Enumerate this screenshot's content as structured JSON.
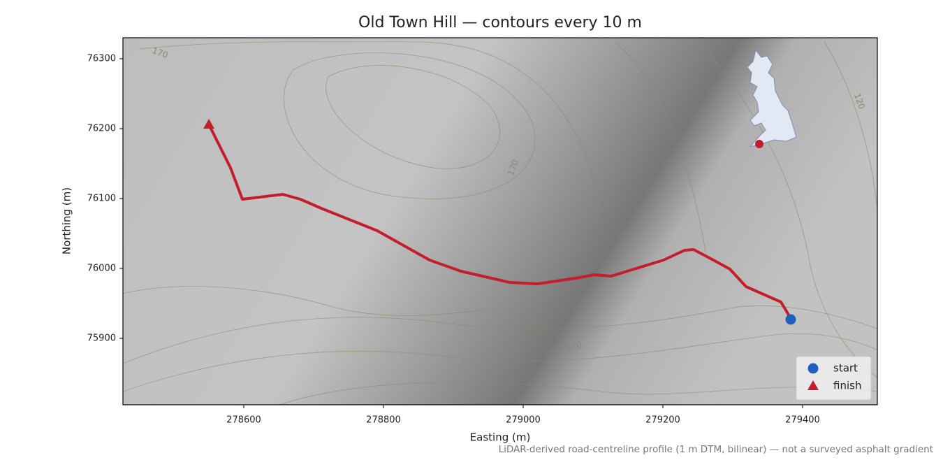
{
  "chart_data": {
    "type": "line",
    "title": "Old Town Hill — contours every 10 m",
    "xlabel": "Easting (m)",
    "ylabel": "Northing (m)",
    "note": "LiDAR-derived road-centreline profile (1 m DTM, bilinear) — not a surveyed asphalt gradient",
    "contour_labels": [
      "170",
      "170",
      "120",
      "120"
    ],
    "xlim": [
      278427,
      279507
    ],
    "ylim": [
      75805,
      76330
    ],
    "xticks": [
      278600,
      278800,
      279000,
      279200,
      279400
    ],
    "yticks": [
      75900,
      76000,
      76100,
      76200,
      76300
    ],
    "legend": "lower right",
    "series": [
      {
        "color": "#c41e2e",
        "x": [
          278550,
          278581,
          278598,
          278656,
          278681,
          278711,
          278791,
          278866,
          278911,
          278981,
          279021,
          279081,
          279101,
          279126,
          279201,
          279231,
          279244,
          279276,
          279296,
          279319,
          279369,
          279381
        ],
        "y": [
          76206,
          76144,
          76099,
          76106,
          76099,
          76086,
          76054,
          76012,
          75996,
          75980,
          75978,
          75987,
          75991,
          75989,
          76012,
          76026,
          76027,
          76010,
          75999,
          75974,
          75952,
          75932
        ]
      },
      {
        "name": "start",
        "color": "#1f5fbf",
        "marker": "circle",
        "x": [
          279383
        ],
        "y": [
          75927
        ]
      },
      {
        "name": "finish",
        "color": "#c41e2e",
        "marker": "triangle",
        "x": [
          278550
        ],
        "y": [
          76206
        ]
      }
    ]
  }
}
